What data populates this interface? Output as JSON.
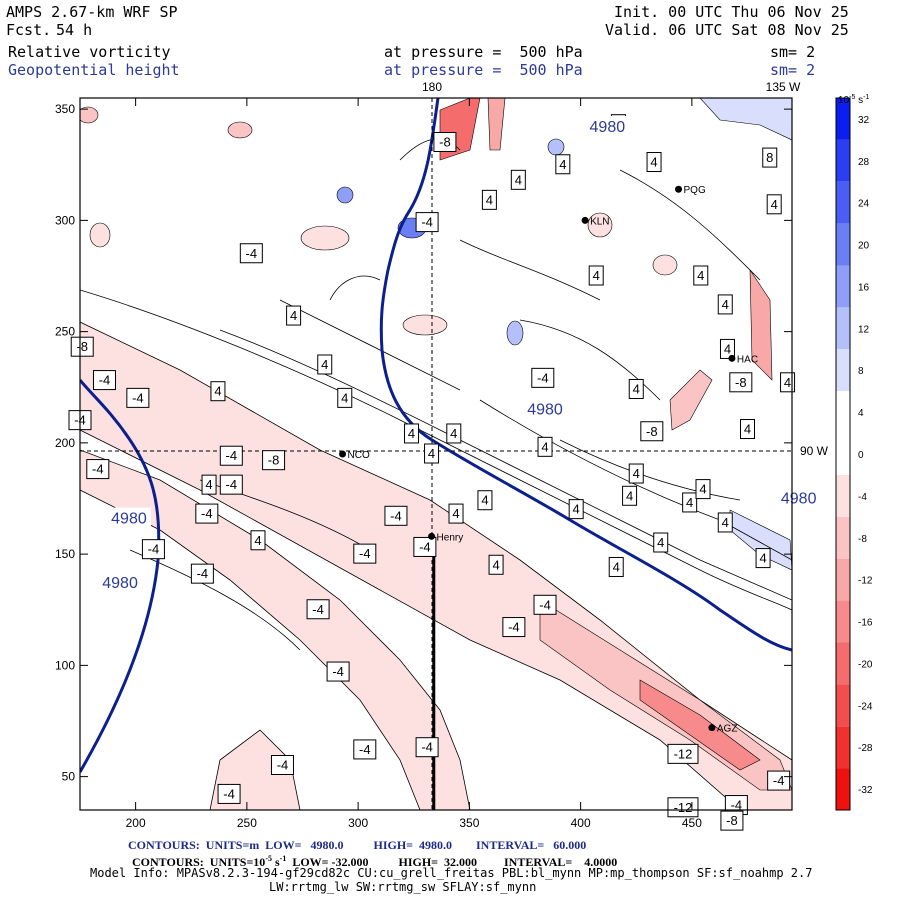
{
  "header": {
    "model": "AMPS 2.67-km WRF SP",
    "forecast_label": "Fcst.",
    "forecast_hours": "54 h",
    "init": "Init. 00 UTC Thu 06 Nov 25",
    "valid": "Valid. 06 UTC Sat 08 Nov 25",
    "field1_name": "Relative vorticity",
    "field1_level": "at pressure =  500 hPa",
    "field1_smooth": "sm= 2",
    "field2_name": "Geopotential height",
    "field2_level": "at pressure =  500 hPa",
    "field2_smooth": "sm= 2"
  },
  "footer": {
    "contours1_label": "CONTOURS:  UNITS=m  LOW=   4980.0          HIGH=  4980.0        INTERVAL=   60.000",
    "contours2_label": "CONTOURS:  UNITS=10",
    "contours2_exp": "-5",
    "contours2_rest": " s",
    "contours2_exp2": "-1",
    "contours2_tail": "  LOW= -32.000          HIGH=  32.000         INTERVAL=    4.0000",
    "model_info": "Model Info: MPASv8.2.3-194-gf29cd82c CU:cu_grell_freitas PBL:bl_mynn MP:mp_thompson SF:sf_noahmp 2.7",
    "model_info2": "LW:rrtmg_lw SW:rrtmg_sw SFLAY:sf_mynn"
  },
  "chart_data": {
    "type": "heatmap",
    "description_units": "10^-5 s^-1",
    "xlim": [
      175,
      495
    ],
    "ylim": [
      35,
      355
    ],
    "x_ticks": [
      200,
      250,
      300,
      350,
      400,
      450
    ],
    "y_ticks": [
      50,
      100,
      150,
      200,
      250,
      300,
      350
    ],
    "meridian_labels": {
      "top_180": "180",
      "top_135": "135 W",
      "right_90": "90 W"
    },
    "meridian_x": 335,
    "parallel_y": 195,
    "colorbar": {
      "unit_label": "10",
      "unit_exp": "-5",
      "unit_tail": " s",
      "unit_exp2": "-1",
      "levels": [
        32,
        28,
        24,
        20,
        16,
        12,
        8,
        4,
        0,
        -4,
        -8,
        -12,
        -16,
        -20,
        -24,
        -28,
        -32
      ],
      "colors": [
        "#0a1ef0",
        "#2a3ef2",
        "#4a5ef4",
        "#6a7ef6",
        "#8f9ff8",
        "#b4c0fa",
        "#d8defc",
        "#ffffff",
        "#ffffff",
        "#fde0e0",
        "#fbc4c4",
        "#f9a8a8",
        "#f78a8a",
        "#f56c6c",
        "#f34e4e",
        "#f13030",
        "#ef1010"
      ]
    },
    "height_contour": {
      "value_label": "4980",
      "labels": [
        {
          "x": 384,
          "y": 215,
          "text": "4980"
        },
        {
          "x": 412,
          "y": 342,
          "text": "4980"
        },
        {
          "x": 498,
          "y": 175,
          "text": "4980"
        },
        {
          "x": 197,
          "y": 166,
          "text": "4980"
        },
        {
          "x": 193,
          "y": 137,
          "text": "4980"
        }
      ]
    },
    "stations": [
      {
        "name": "NCO",
        "x": 293,
        "y": 195
      },
      {
        "name": "Henry",
        "x": 333,
        "y": 158
      },
      {
        "name": "KLN",
        "x": 402,
        "y": 300
      },
      {
        "name": "PQG",
        "x": 444,
        "y": 314
      },
      {
        "name": "HAC",
        "x": 468,
        "y": 238
      },
      {
        "name": "AGZ",
        "x": 459,
        "y": 72
      }
    ],
    "cross_section": {
      "x": 334,
      "y_from": 35,
      "y_to": 158
    },
    "contour_labels": [
      {
        "x": 176,
        "y": 243,
        "t": "-8"
      },
      {
        "x": 186,
        "y": 228,
        "t": "-4"
      },
      {
        "x": 201,
        "y": 220,
        "t": "-4"
      },
      {
        "x": 175,
        "y": 210,
        "t": "-4"
      },
      {
        "x": 183,
        "y": 188,
        "t": "-4"
      },
      {
        "x": 237,
        "y": 223,
        "t": "4"
      },
      {
        "x": 243,
        "y": 194,
        "t": "-4"
      },
      {
        "x": 262,
        "y": 192,
        "t": "-8"
      },
      {
        "x": 271,
        "y": 257,
        "t": "4"
      },
      {
        "x": 285,
        "y": 235,
        "t": "4"
      },
      {
        "x": 294,
        "y": 220,
        "t": "4"
      },
      {
        "x": 252,
        "y": 285,
        "t": "-4"
      },
      {
        "x": 233,
        "y": 181,
        "t": "4"
      },
      {
        "x": 243,
        "y": 181,
        "t": "-4"
      },
      {
        "x": 232,
        "y": 168,
        "t": "-4"
      },
      {
        "x": 255,
        "y": 156,
        "t": "4"
      },
      {
        "x": 208,
        "y": 152,
        "t": "-4"
      },
      {
        "x": 230,
        "y": 141,
        "t": "-4"
      },
      {
        "x": 282,
        "y": 125,
        "t": "-4"
      },
      {
        "x": 291,
        "y": 97,
        "t": "-4"
      },
      {
        "x": 303,
        "y": 62,
        "t": "-4"
      },
      {
        "x": 266,
        "y": 55,
        "t": "-4"
      },
      {
        "x": 242,
        "y": 42,
        "t": "-4"
      },
      {
        "x": 331,
        "y": 63,
        "t": "-4"
      },
      {
        "x": 317,
        "y": 167,
        "t": "-4"
      },
      {
        "x": 303,
        "y": 150,
        "t": "-4"
      },
      {
        "x": 330,
        "y": 153,
        "t": "-4"
      },
      {
        "x": 333,
        "y": 195,
        "t": "4"
      },
      {
        "x": 324,
        "y": 204,
        "t": "4"
      },
      {
        "x": 343,
        "y": 204,
        "t": "4"
      },
      {
        "x": 344,
        "y": 168,
        "t": "4"
      },
      {
        "x": 357,
        "y": 174,
        "t": "4"
      },
      {
        "x": 362,
        "y": 145,
        "t": "4"
      },
      {
        "x": 384,
        "y": 198,
        "t": "4"
      },
      {
        "x": 383,
        "y": 229,
        "t": "-4"
      },
      {
        "x": 384,
        "y": 127,
        "t": "-4"
      },
      {
        "x": 370,
        "y": 117,
        "t": "-4"
      },
      {
        "x": 398,
        "y": 170,
        "t": "4"
      },
      {
        "x": 425,
        "y": 186,
        "t": "4"
      },
      {
        "x": 422,
        "y": 176,
        "t": "4"
      },
      {
        "x": 425,
        "y": 224,
        "t": "4"
      },
      {
        "x": 407,
        "y": 275,
        "t": "4"
      },
      {
        "x": 416,
        "y": 144,
        "t": "4"
      },
      {
        "x": 436,
        "y": 155,
        "t": "4"
      },
      {
        "x": 432,
        "y": 205,
        "t": "-8"
      },
      {
        "x": 449,
        "y": 173,
        "t": "4"
      },
      {
        "x": 455,
        "y": 179,
        "t": "4"
      },
      {
        "x": 465,
        "y": 164,
        "t": "4"
      },
      {
        "x": 465,
        "y": 262,
        "t": "4"
      },
      {
        "x": 472,
        "y": 227,
        "t": "-8"
      },
      {
        "x": 475,
        "y": 206,
        "t": "4"
      },
      {
        "x": 466,
        "y": 242,
        "t": "4"
      },
      {
        "x": 493,
        "y": 227,
        "t": "4"
      },
      {
        "x": 482,
        "y": 148,
        "t": "4"
      },
      {
        "x": 487,
        "y": 307,
        "t": "4"
      },
      {
        "x": 485,
        "y": 328,
        "t": "8"
      },
      {
        "x": 359,
        "y": 309,
        "t": "4"
      },
      {
        "x": 331,
        "y": 299,
        "t": "-4"
      },
      {
        "x": 339,
        "y": 335,
        "t": "-8"
      },
      {
        "x": 372,
        "y": 318,
        "t": "4"
      },
      {
        "x": 392,
        "y": 325,
        "t": "4"
      },
      {
        "x": 417,
        "y": 343,
        "t": "8"
      },
      {
        "x": 433,
        "y": 326,
        "t": "4"
      },
      {
        "x": 454,
        "y": 275,
        "t": "4"
      },
      {
        "x": 446,
        "y": 36,
        "t": "-12"
      },
      {
        "x": 470,
        "y": 37,
        "t": "-4"
      },
      {
        "x": 446,
        "y": 60,
        "t": "-12"
      },
      {
        "x": 468,
        "y": 30,
        "t": "-8"
      },
      {
        "x": 489,
        "y": 48,
        "t": "-4"
      }
    ]
  }
}
